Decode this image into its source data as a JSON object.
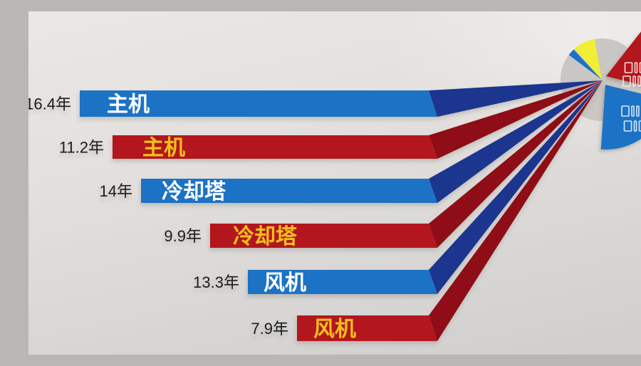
{
  "chart_data": {
    "type": "bar",
    "subtype": "horizontal 3D bars flowing into exploded pie",
    "unit": "年",
    "rows": [
      {
        "value": 16.4,
        "value_label": "16.4年",
        "label": "主机",
        "color_role": "blue"
      },
      {
        "value": 11.2,
        "value_label": "11.2年",
        "label": "主机",
        "color_role": "red"
      },
      {
        "value": 14,
        "value_label": "14年",
        "label": "冷却塔",
        "color_role": "blue"
      },
      {
        "value": 9.9,
        "value_label": "9.9年",
        "label": "冷却塔",
        "color_role": "red"
      },
      {
        "value": 13.3,
        "value_label": "13.3年",
        "label": "风机",
        "color_role": "blue"
      },
      {
        "value": 7.9,
        "value_label": "7.9年",
        "label": "风机",
        "color_role": "red"
      }
    ],
    "pie": {
      "slices": [
        {
          "name": "slice-red-exploded",
          "color_role": "red",
          "start_deg": -14,
          "end_deg": 52,
          "radius": 80,
          "explode_offset": [
            6,
            -5
          ],
          "label_lines": [
            "□|□",
            "□||□"
          ]
        },
        {
          "name": "slice-blue-exploded",
          "color_role": "blue",
          "start_deg": -94,
          "end_deg": -14,
          "radius": 91,
          "explode_offset": [
            5,
            7
          ],
          "label_lines": [
            "□||□",
            "□|□"
          ]
        },
        {
          "name": "slice-yellow",
          "color_role": "yellow",
          "start_deg": 100,
          "end_deg": 131,
          "radius": 58
        },
        {
          "name": "slice-blue-small",
          "color_role": "blue",
          "start_deg": 133,
          "end_deg": 143,
          "radius": 58
        },
        {
          "name": "slice-gray-base",
          "color_role": "gray",
          "start_deg": 0,
          "end_deg": 360,
          "radius": 58
        }
      ]
    },
    "colors": {
      "blue": "#1a72c4",
      "blue_dark": "#1b358f",
      "red": "#b3141c",
      "red_dark": "#8e0f15",
      "yellow": "#f1ee35",
      "gray": "#c9c6c3",
      "gold_text": "#f2c11d",
      "white_text": "#ffffff",
      "value_text": "#1c1c1c"
    }
  }
}
